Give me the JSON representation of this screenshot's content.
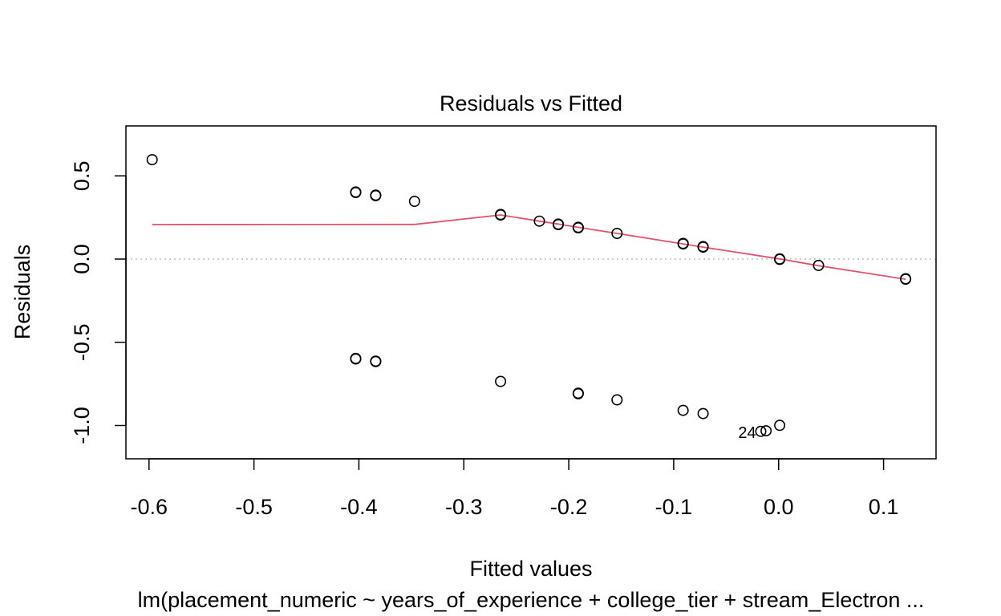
{
  "chart_data": {
    "type": "scatter",
    "title": "Residuals vs Fitted",
    "xlabel": "Fitted values",
    "ylabel": "Residuals",
    "subtitle": "lm(placement_numeric ~ years_of_experience + college_tier + stream_Electron ...",
    "xlim": [
      -0.622,
      0.15
    ],
    "ylim": [
      -1.2,
      0.8
    ],
    "x_ticks": [
      -0.6,
      -0.5,
      -0.4,
      -0.3,
      -0.2,
      -0.1,
      0.0,
      0.1
    ],
    "x_tick_labels": [
      "-0.6",
      "-0.5",
      "-0.4",
      "-0.3",
      "-0.2",
      "-0.1",
      "0.0",
      "0.1"
    ],
    "y_ticks": [
      -1.0,
      -0.5,
      0.0,
      0.5
    ],
    "y_tick_labels": [
      "-1.0",
      "-0.5",
      "0.0",
      "0.5"
    ],
    "reference_line_y": 0,
    "points": [
      {
        "x": -0.597,
        "y": 0.597
      },
      {
        "x": -0.403,
        "y": 0.403
      },
      {
        "x": -0.403,
        "y": 0.4
      },
      {
        "x": -0.384,
        "y": 0.384
      },
      {
        "x": -0.384,
        "y": 0.381
      },
      {
        "x": -0.347,
        "y": 0.347
      },
      {
        "x": -0.265,
        "y": 0.265
      },
      {
        "x": -0.265,
        "y": 0.268
      },
      {
        "x": -0.228,
        "y": 0.228
      },
      {
        "x": -0.21,
        "y": 0.21
      },
      {
        "x": -0.21,
        "y": 0.207
      },
      {
        "x": -0.191,
        "y": 0.191
      },
      {
        "x": -0.191,
        "y": 0.188
      },
      {
        "x": -0.154,
        "y": 0.154
      },
      {
        "x": -0.091,
        "y": 0.091
      },
      {
        "x": -0.091,
        "y": 0.094
      },
      {
        "x": -0.072,
        "y": 0.072
      },
      {
        "x": -0.072,
        "y": 0.075
      },
      {
        "x": 0.001,
        "y": 0.001
      },
      {
        "x": 0.001,
        "y": -0.002
      },
      {
        "x": 0.038,
        "y": -0.038
      },
      {
        "x": 0.121,
        "y": -0.121
      },
      {
        "x": 0.121,
        "y": -0.118
      },
      {
        "x": -0.403,
        "y": -0.597
      },
      {
        "x": -0.403,
        "y": -0.6
      },
      {
        "x": -0.384,
        "y": -0.616
      },
      {
        "x": -0.384,
        "y": -0.613
      },
      {
        "x": -0.265,
        "y": -0.735
      },
      {
        "x": -0.191,
        "y": -0.809
      },
      {
        "x": -0.191,
        "y": -0.806
      },
      {
        "x": -0.154,
        "y": -0.846
      },
      {
        "x": -0.091,
        "y": -0.909
      },
      {
        "x": -0.072,
        "y": -0.928
      },
      {
        "x": 0.001,
        "y": -0.999
      },
      {
        "x": -0.012,
        "y": -1.032
      },
      {
        "x": -0.017,
        "y": -1.035
      }
    ],
    "smooth_line": {
      "color": "#DF536B",
      "x": [
        -0.597,
        -0.347,
        -0.265,
        -0.228,
        -0.21,
        -0.191,
        -0.154,
        -0.091,
        -0.072,
        0.001,
        0.038,
        0.121
      ],
      "y": [
        0.207,
        0.208,
        0.265,
        0.228,
        0.21,
        0.191,
        0.154,
        0.091,
        0.072,
        0.001,
        -0.04,
        -0.121
      ]
    },
    "point_labels": [
      {
        "text": "24",
        "x": -0.03,
        "y": -1.035
      }
    ]
  }
}
